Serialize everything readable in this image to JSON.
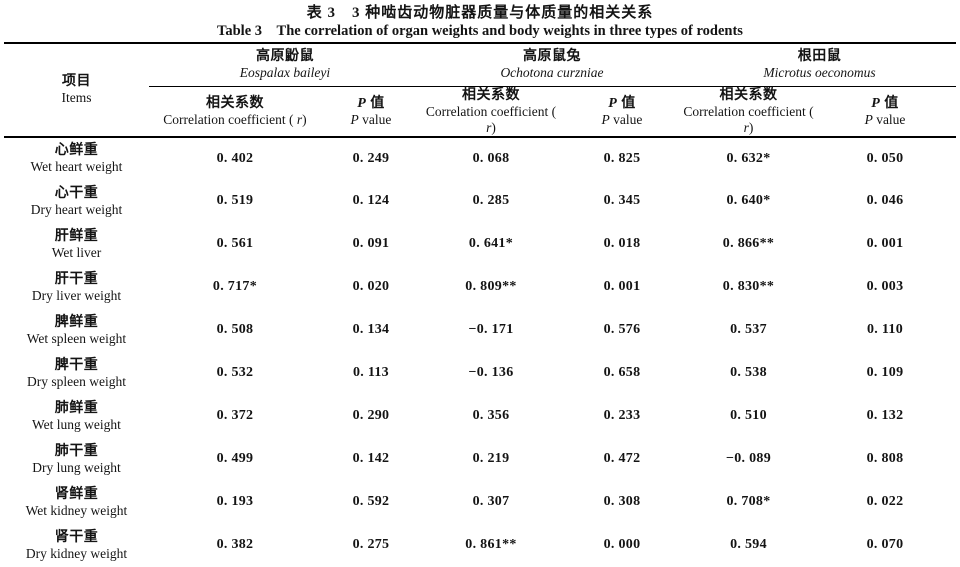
{
  "title": {
    "zh": "表 3　3 种啮齿动物脏器质量与体质量的相关关系",
    "en": "Table 3　The correlation of organ weights and body weights in three types of rodents"
  },
  "header": {
    "items": {
      "zh": "项目",
      "en": "Items"
    },
    "groups": [
      {
        "zh": "高原鼢鼠",
        "latin": "Eospalax baileyi"
      },
      {
        "zh": "高原鼠兔",
        "latin": "Ochotona curzniae"
      },
      {
        "zh": "根田鼠",
        "latin": "Microtus oeconomus"
      }
    ],
    "sub": {
      "corr_zh": "相关系数",
      "corr_en_prefix": "Correlation coefficient ( ",
      "corr_en_var": "r",
      "corr_en_suffix": ")",
      "p_var": "P",
      "p_zh_rest": " 值",
      "p_en_rest": " value"
    }
  },
  "rows": [
    {
      "zh": "心鲜重",
      "en": "Wet heart weight",
      "values": [
        "0. 402",
        "0. 249",
        "0. 068",
        "0. 825",
        "0. 632*",
        "0. 050"
      ]
    },
    {
      "zh": "心干重",
      "en": "Dry heart weight",
      "values": [
        "0. 519",
        "0. 124",
        "0. 285",
        "0. 345",
        "0. 640*",
        "0. 046"
      ]
    },
    {
      "zh": "肝鲜重",
      "en": "Wet liver",
      "values": [
        "0. 561",
        "0. 091",
        "0. 641*",
        "0. 018",
        "0. 866**",
        "0. 001"
      ]
    },
    {
      "zh": "肝干重",
      "en": "Dry liver weight",
      "values": [
        "0. 717*",
        "0. 020",
        "0. 809**",
        "0. 001",
        "0. 830**",
        "0. 003"
      ]
    },
    {
      "zh": "脾鲜重",
      "en": "Wet spleen weight",
      "values": [
        "0. 508",
        "0. 134",
        "−0. 171",
        "0. 576",
        "0. 537",
        "0. 110"
      ]
    },
    {
      "zh": "脾干重",
      "en": "Dry spleen weight",
      "values": [
        "0. 532",
        "0. 113",
        "−0. 136",
        "0. 658",
        "0. 538",
        "0. 109"
      ]
    },
    {
      "zh": "肺鲜重",
      "en": "Wet lung weight",
      "values": [
        "0. 372",
        "0. 290",
        "0. 356",
        "0. 233",
        "0. 510",
        "0. 132"
      ]
    },
    {
      "zh": "肺干重",
      "en": "Dry lung weight",
      "values": [
        "0. 499",
        "0. 142",
        "0. 219",
        "0. 472",
        "−0. 089",
        "0. 808"
      ]
    },
    {
      "zh": "肾鲜重",
      "en": "Wet kidney weight",
      "values": [
        "0. 193",
        "0. 592",
        "0. 307",
        "0. 308",
        "0. 708*",
        "0. 022"
      ]
    },
    {
      "zh": "肾干重",
      "en": "Dry kidney weight",
      "values": [
        "0. 382",
        "0. 275",
        "0. 861**",
        "0. 000",
        "0. 594",
        "0. 070"
      ]
    }
  ]
}
